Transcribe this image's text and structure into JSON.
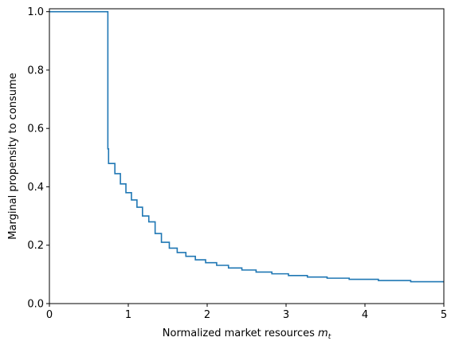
{
  "chart_data": {
    "type": "line",
    "title": "",
    "xlabel": "Normalized market resources",
    "xlabel_math": "m",
    "xlabel_sub": "t",
    "ylabel": "Marginal propensity to consume",
    "xlim": [
      0,
      5
    ],
    "ylim": [
      0,
      1.01
    ],
    "xticks": [
      0,
      1,
      2,
      3,
      4,
      5
    ],
    "xtick_labels": [
      "0",
      "1",
      "2",
      "3",
      "4",
      "5"
    ],
    "yticks": [
      0.0,
      0.2,
      0.4,
      0.6,
      0.8,
      1.0
    ],
    "ytick_labels": [
      "0.0",
      "0.2",
      "0.4",
      "0.6",
      "0.8",
      "1.0"
    ],
    "grid": false,
    "legend": "none",
    "color": "#1f77b4",
    "series": [
      {
        "drawstyle": "steps-post",
        "x": [
          0.0,
          0.74,
          0.741,
          0.75,
          0.83,
          0.9,
          0.97,
          1.04,
          1.11,
          1.18,
          1.26,
          1.34,
          1.42,
          1.52,
          1.62,
          1.73,
          1.85,
          1.98,
          2.12,
          2.27,
          2.44,
          2.62,
          2.82,
          3.03,
          3.27,
          3.52,
          3.8,
          4.17,
          4.58,
          5.0
        ],
        "y": [
          1.0,
          1.0,
          0.53,
          0.48,
          0.445,
          0.41,
          0.38,
          0.355,
          0.33,
          0.3,
          0.28,
          0.24,
          0.21,
          0.19,
          0.175,
          0.162,
          0.15,
          0.14,
          0.131,
          0.122,
          0.115,
          0.108,
          0.102,
          0.096,
          0.091,
          0.087,
          0.083,
          0.079,
          0.075,
          0.075
        ]
      }
    ]
  }
}
